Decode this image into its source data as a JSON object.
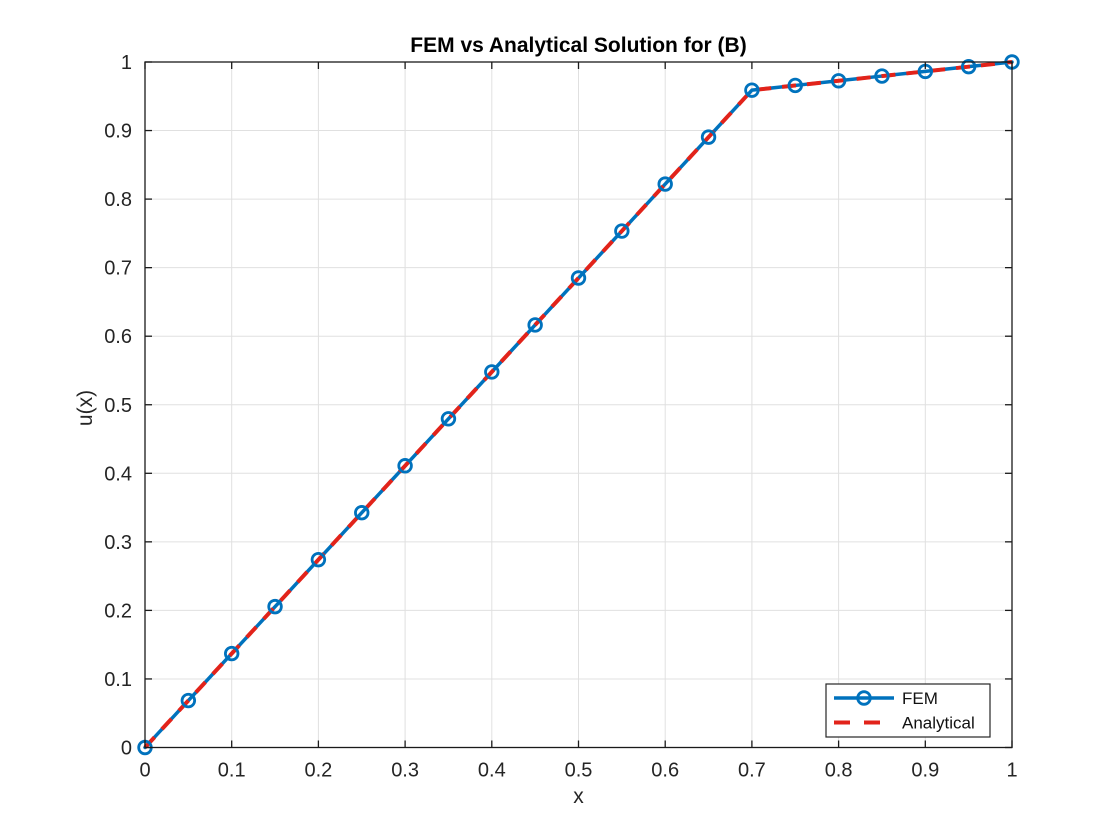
{
  "chart_data": {
    "type": "line",
    "title": "FEM vs Analytical Solution for (B)",
    "xlabel": "x",
    "ylabel": "u(x)",
    "xlim": [
      0,
      1
    ],
    "ylim": [
      0,
      1
    ],
    "grid": true,
    "box": true,
    "tick_direction": "in",
    "legend_position": "southeast",
    "xticks": [
      0,
      0.1,
      0.2,
      0.3,
      0.4,
      0.5,
      0.6,
      0.7,
      0.8,
      0.9,
      1
    ],
    "xtick_labels": [
      "0",
      "0.1",
      "0.2",
      "0.3",
      "0.4",
      "0.5",
      "0.6",
      "0.7",
      "0.8",
      "0.9",
      "1"
    ],
    "yticks": [
      0,
      0.1,
      0.2,
      0.3,
      0.4,
      0.5,
      0.6,
      0.7,
      0.8,
      0.9,
      1
    ],
    "ytick_labels": [
      "0",
      "0.1",
      "0.2",
      "0.3",
      "0.4",
      "0.5",
      "0.6",
      "0.7",
      "0.8",
      "0.9",
      "1"
    ],
    "series": [
      {
        "name": "FEM",
        "line_style": "solid",
        "marker": "circle",
        "color": "#0072BD",
        "x": [
          0,
          0.05,
          0.1,
          0.15,
          0.2,
          0.25,
          0.3,
          0.35,
          0.4,
          0.45,
          0.5,
          0.55,
          0.6,
          0.65,
          0.7,
          0.75,
          0.8,
          0.85,
          0.9,
          0.95,
          1.0
        ],
        "y": [
          0,
          0.0685,
          0.137,
          0.2055,
          0.274,
          0.3425,
          0.411,
          0.4795,
          0.5479,
          0.6164,
          0.6849,
          0.7534,
          0.8219,
          0.8904,
          0.9589,
          0.9658,
          0.9726,
          0.9795,
          0.9863,
          0.9932,
          1.0
        ]
      },
      {
        "name": "Analytical",
        "line_style": "dashed",
        "marker": "none",
        "color": "#E2231A",
        "x": [
          0,
          0.7,
          1.0
        ],
        "y": [
          0,
          0.9589,
          1.0
        ]
      }
    ],
    "colors": {
      "fem_blue": "#0072BD",
      "analytical_red": "#E2231A",
      "grid": "#E0E0E0",
      "axes_box": "#1A1A1A",
      "tick_text": "#252525",
      "legend_border": "#262626",
      "background": "#FFFFFF"
    }
  }
}
